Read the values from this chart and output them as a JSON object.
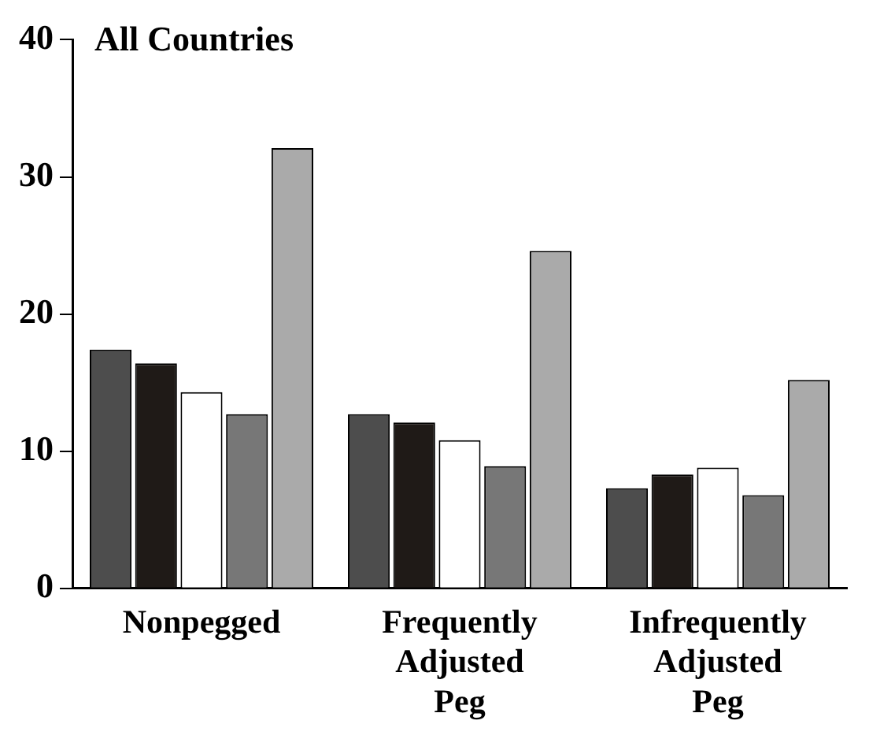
{
  "chart_data": {
    "type": "bar",
    "title": "All Countries",
    "categories": [
      "Nonpegged",
      "Frequently Adjusted Peg",
      "Infrequently Adjusted Peg"
    ],
    "series": [
      {
        "color": "#4d4d4d",
        "values": [
          17.4,
          12.7,
          7.3
        ]
      },
      {
        "color": "#1f1a17",
        "values": [
          16.4,
          12.1,
          8.3
        ]
      },
      {
        "color": "#ffffff",
        "values": [
          14.3,
          10.8,
          8.8
        ]
      },
      {
        "color": "#777777",
        "values": [
          12.7,
          8.9,
          6.8
        ]
      },
      {
        "color": "#aaaaaa",
        "values": [
          32.1,
          24.6,
          15.2
        ]
      }
    ],
    "ylim": [
      0,
      40
    ],
    "yticks": [
      0,
      10,
      20,
      30,
      40
    ],
    "grid": false,
    "legend": false
  }
}
